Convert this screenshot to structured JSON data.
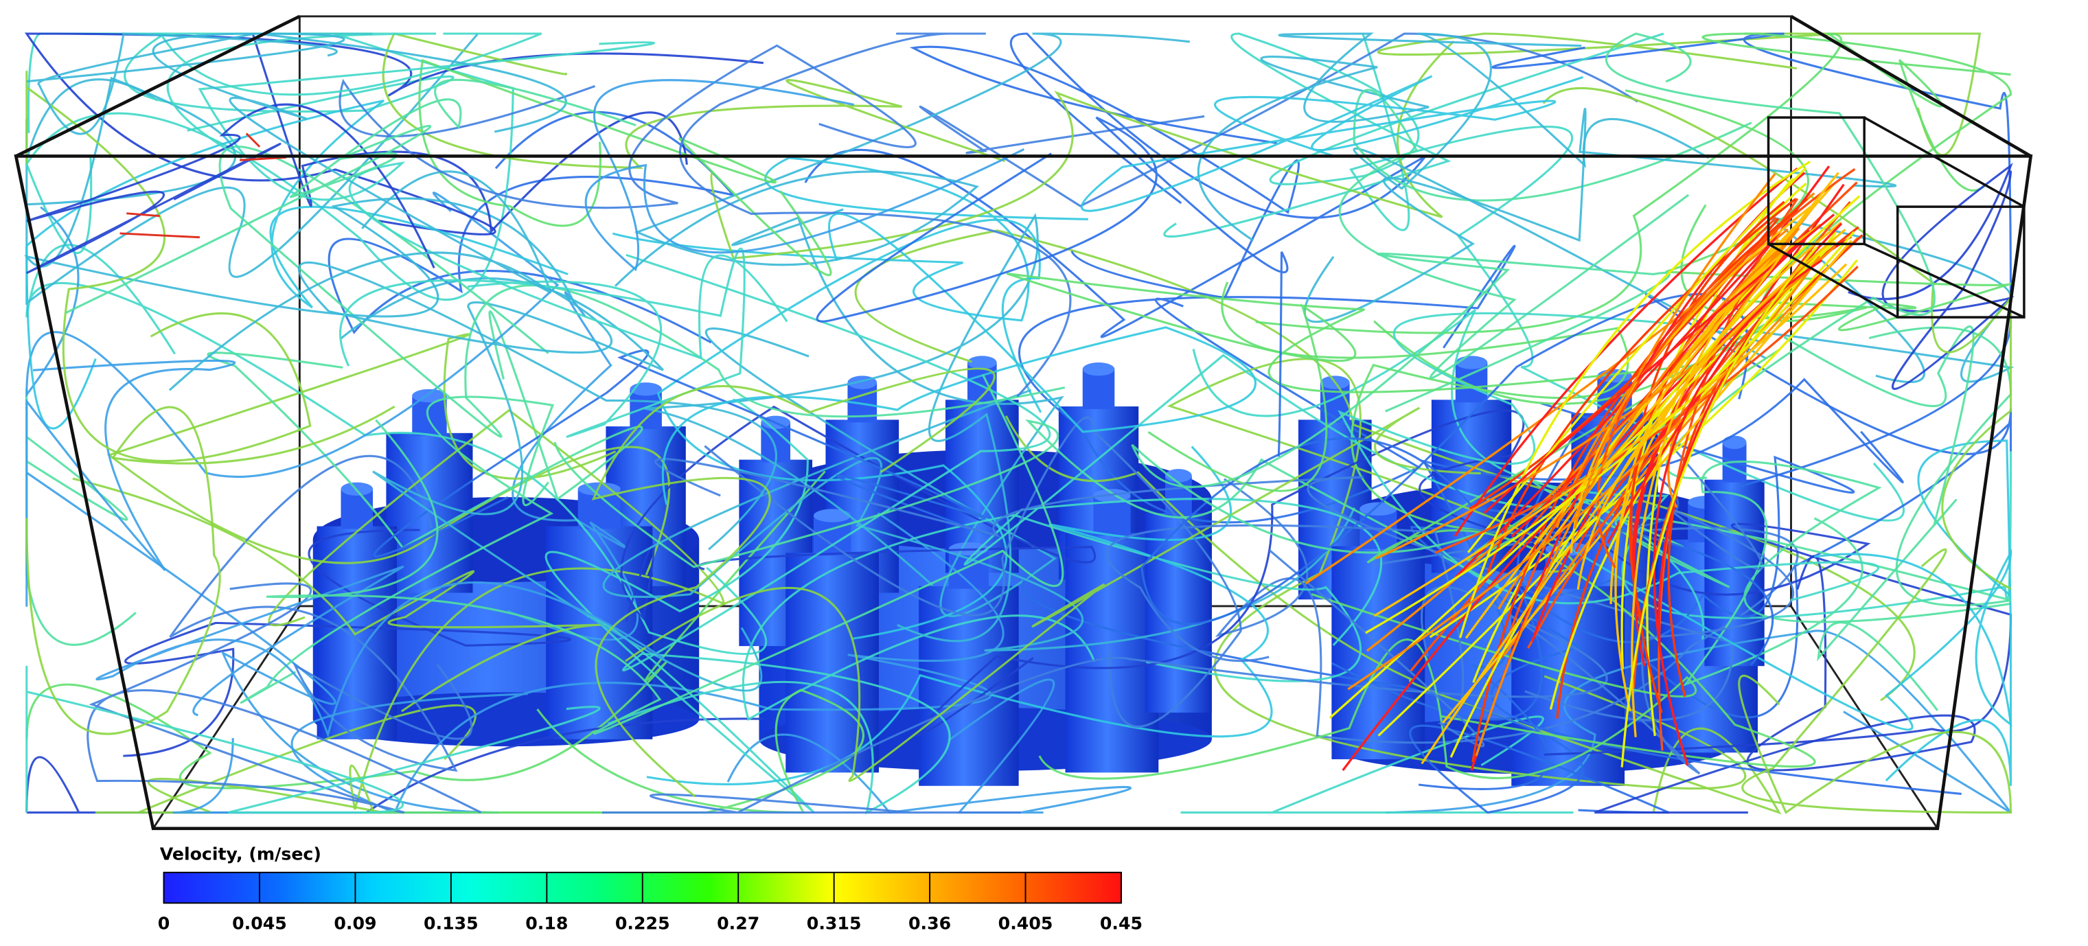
{
  "colorbar": {
    "title": "Velocity, (m/sec)",
    "lim": [
      0,
      0.45
    ],
    "ticks": [
      0,
      0.045,
      0.09,
      0.135,
      0.18,
      0.225,
      0.27,
      0.315,
      0.36,
      0.405,
      0.45
    ]
  }
}
